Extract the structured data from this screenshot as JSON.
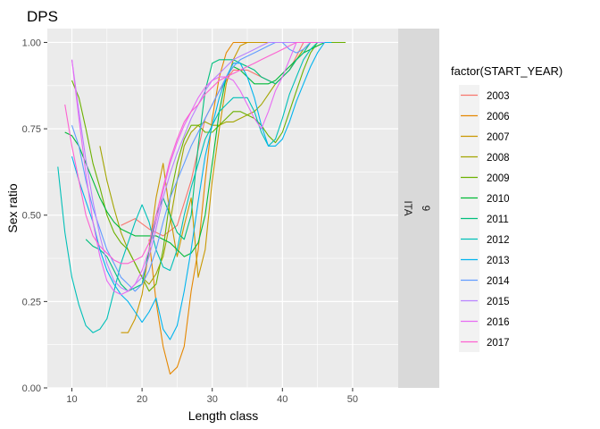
{
  "chart_data": {
    "type": "line",
    "title": "DPS",
    "xlabel": "Length class",
    "ylabel": "Sex ratio",
    "xlim": [
      6.5,
      56.5
    ],
    "ylim": [
      0,
      1.04
    ],
    "x_ticks": [
      10,
      20,
      30,
      40,
      50
    ],
    "y_ticks": [
      0,
      0.25,
      0.5,
      0.75,
      1
    ],
    "y_tick_labels": [
      "0.00",
      "0.25",
      "0.50",
      "0.75",
      "1.00"
    ],
    "grid": true,
    "facet_strip": [
      "9",
      "ITA"
    ],
    "legend_title": "factor(START_YEAR)",
    "legend_position": "right",
    "series": [
      {
        "name": "2003",
        "color": "#F8766D",
        "x": [
          17,
          19,
          21,
          23,
          25,
          27,
          29,
          31,
          33,
          35,
          37,
          39,
          41,
          43
        ],
        "y": [
          0.47,
          0.49,
          0.46,
          0.44,
          0.47,
          0.6,
          0.78,
          0.86,
          0.92,
          0.92,
          0.9,
          0.88,
          0.92,
          1.0
        ]
      },
      {
        "name": "2006",
        "color": "#E58700",
        "x": [
          21,
          22,
          23,
          24,
          25,
          26,
          27,
          28,
          29,
          30,
          31,
          32,
          33,
          35,
          37,
          39,
          41,
          43,
          45
        ],
        "y": [
          0.43,
          0.25,
          0.12,
          0.04,
          0.06,
          0.12,
          0.28,
          0.4,
          0.6,
          0.78,
          0.9,
          0.97,
          1.0,
          1.0,
          1.0,
          1.0,
          1.0,
          1.0,
          1.0
        ]
      },
      {
        "name": "2007",
        "color": "#C99800",
        "x": [
          17,
          18,
          19,
          20,
          21,
          22,
          23,
          24,
          25,
          26,
          27,
          28,
          29,
          30,
          31,
          32,
          33,
          34,
          35,
          36,
          37,
          39,
          41,
          43,
          45
        ],
        "y": [
          0.16,
          0.16,
          0.2,
          0.27,
          0.4,
          0.55,
          0.65,
          0.5,
          0.38,
          0.47,
          0.55,
          0.32,
          0.4,
          0.6,
          0.75,
          0.88,
          0.95,
          0.99,
          1.0,
          1.0,
          1.0,
          1.0,
          1.0,
          1.0,
          1.0
        ]
      },
      {
        "name": "2008",
        "color": "#A3A500",
        "x": [
          14,
          15,
          16,
          17,
          18,
          19,
          20,
          21,
          22,
          23,
          24,
          25,
          26,
          27,
          28,
          29,
          30,
          31,
          32,
          33,
          34,
          35,
          36,
          37,
          38,
          39,
          40,
          41,
          42,
          43,
          44,
          45,
          46
        ],
        "y": [
          0.7,
          0.6,
          0.52,
          0.45,
          0.4,
          0.36,
          0.32,
          0.3,
          0.33,
          0.38,
          0.48,
          0.6,
          0.7,
          0.74,
          0.76,
          0.77,
          0.76,
          0.76,
          0.77,
          0.77,
          0.78,
          0.79,
          0.8,
          0.82,
          0.85,
          0.88,
          0.9,
          0.92,
          0.95,
          0.98,
          1.0,
          1.0,
          1.0
        ]
      },
      {
        "name": "2009",
        "color": "#6BB100",
        "x": [
          10,
          11,
          12,
          13,
          14,
          15,
          16,
          17,
          18,
          19,
          20,
          21,
          22,
          23,
          24,
          25,
          26,
          27,
          28,
          29,
          30,
          31,
          32,
          33,
          34,
          35,
          36,
          37,
          38,
          39,
          40,
          41,
          42,
          43,
          44,
          45,
          46,
          47,
          48,
          49
        ],
        "y": [
          0.89,
          0.84,
          0.75,
          0.65,
          0.58,
          0.5,
          0.45,
          0.42,
          0.4,
          0.36,
          0.32,
          0.28,
          0.3,
          0.4,
          0.55,
          0.65,
          0.72,
          0.76,
          0.76,
          0.74,
          0.74,
          0.76,
          0.78,
          0.8,
          0.8,
          0.79,
          0.78,
          0.76,
          0.73,
          0.71,
          0.74,
          0.8,
          0.86,
          0.92,
          0.97,
          1.0,
          1.0,
          1.0,
          1.0,
          1.0
        ]
      },
      {
        "name": "2010",
        "color": "#00BA38",
        "x": [
          9,
          10,
          11,
          12,
          13,
          14,
          15,
          16,
          17,
          18,
          19,
          20,
          21,
          22,
          23,
          24,
          25,
          26,
          27,
          28,
          29,
          30,
          31,
          32,
          33,
          34,
          35,
          36,
          37,
          38,
          39,
          40,
          41,
          42,
          43,
          44,
          45,
          46,
          47
        ],
        "y": [
          0.74,
          0.73,
          0.7,
          0.65,
          0.6,
          0.55,
          0.51,
          0.48,
          0.46,
          0.45,
          0.44,
          0.44,
          0.44,
          0.44,
          0.43,
          0.42,
          0.4,
          0.38,
          0.39,
          0.42,
          0.5,
          0.65,
          0.8,
          0.9,
          0.93,
          0.92,
          0.9,
          0.88,
          0.88,
          0.88,
          0.89,
          0.91,
          0.93,
          0.95,
          0.97,
          0.98,
          0.99,
          1.0,
          1.0
        ]
      },
      {
        "name": "2011",
        "color": "#00BF7D",
        "x": [
          12,
          13,
          14,
          15,
          16,
          17,
          18,
          19,
          20,
          21,
          22,
          23,
          24,
          25,
          26,
          27,
          28,
          29,
          30,
          31,
          32,
          33,
          34,
          35,
          36,
          37,
          38,
          39,
          40,
          41,
          42,
          43,
          44,
          45
        ],
        "y": [
          0.43,
          0.41,
          0.4,
          0.38,
          0.34,
          0.3,
          0.28,
          0.29,
          0.3,
          0.4,
          0.5,
          0.55,
          0.5,
          0.45,
          0.43,
          0.5,
          0.7,
          0.86,
          0.94,
          0.95,
          0.95,
          0.95,
          0.94,
          0.93,
          0.92,
          0.9,
          0.89,
          0.88,
          0.9,
          0.92,
          0.95,
          0.97,
          1.0,
          1.0
        ]
      },
      {
        "name": "2012",
        "color": "#00C0B8",
        "x": [
          8,
          9,
          10,
          11,
          12,
          13,
          14,
          15,
          16,
          17,
          18,
          19,
          20,
          21,
          22,
          23,
          24,
          25,
          26,
          27,
          28,
          29,
          30,
          31,
          32,
          33,
          34,
          35,
          36,
          37,
          38,
          39,
          40,
          41,
          42,
          43,
          44,
          45,
          46
        ],
        "y": [
          0.64,
          0.45,
          0.32,
          0.24,
          0.18,
          0.16,
          0.17,
          0.2,
          0.28,
          0.36,
          0.42,
          0.48,
          0.53,
          0.48,
          0.4,
          0.35,
          0.34,
          0.4,
          0.5,
          0.58,
          0.65,
          0.72,
          0.76,
          0.8,
          0.82,
          0.84,
          0.84,
          0.84,
          0.8,
          0.74,
          0.7,
          0.72,
          0.78,
          0.85,
          0.9,
          0.95,
          0.98,
          1.0,
          1.0
        ]
      },
      {
        "name": "2013",
        "color": "#00B4EF",
        "x": [
          10,
          11,
          12,
          13,
          14,
          15,
          16,
          17,
          18,
          19,
          20,
          21,
          22,
          23,
          24,
          25,
          26,
          27,
          28,
          29,
          30,
          31,
          32,
          33,
          34,
          35,
          36,
          37,
          38,
          39,
          40,
          41,
          42,
          43,
          44,
          45,
          46,
          47
        ],
        "y": [
          0.67,
          0.6,
          0.54,
          0.48,
          0.4,
          0.34,
          0.3,
          0.27,
          0.25,
          0.22,
          0.19,
          0.22,
          0.26,
          0.17,
          0.14,
          0.18,
          0.28,
          0.4,
          0.54,
          0.67,
          0.76,
          0.84,
          0.9,
          0.94,
          0.94,
          0.9,
          0.84,
          0.76,
          0.7,
          0.7,
          0.72,
          0.77,
          0.83,
          0.88,
          0.93,
          0.97,
          1.0,
          1.0
        ]
      },
      {
        "name": "2014",
        "color": "#619CFF",
        "x": [
          10,
          11,
          12,
          13,
          14,
          15,
          16,
          17,
          18,
          19,
          20,
          21,
          22,
          23,
          24,
          25,
          26,
          27,
          28,
          29,
          30,
          31,
          32,
          33,
          34,
          35,
          36,
          37,
          38,
          39,
          40,
          41,
          42,
          43,
          44,
          45,
          46
        ],
        "y": [
          0.76,
          0.7,
          0.6,
          0.52,
          0.46,
          0.4,
          0.36,
          0.32,
          0.3,
          0.28,
          0.3,
          0.34,
          0.4,
          0.48,
          0.55,
          0.6,
          0.65,
          0.7,
          0.74,
          0.78,
          0.82,
          0.86,
          0.9,
          0.93,
          0.95,
          0.96,
          0.97,
          0.98,
          0.99,
          1.0,
          1.0,
          0.98,
          0.97,
          0.98,
          1.0,
          1.0,
          1.0
        ]
      },
      {
        "name": "2015",
        "color": "#B983FF",
        "x": [
          10,
          11,
          12,
          13,
          14,
          15,
          16,
          17,
          18,
          19,
          20,
          21,
          22,
          23,
          24,
          25,
          26,
          27,
          28,
          29,
          30,
          31,
          32,
          33,
          34,
          35,
          36,
          37,
          38,
          39,
          40,
          41,
          42,
          43,
          44,
          45,
          46
        ],
        "y": [
          0.95,
          0.8,
          0.66,
          0.54,
          0.44,
          0.36,
          0.31,
          0.29,
          0.28,
          0.3,
          0.32,
          0.38,
          0.46,
          0.55,
          0.62,
          0.68,
          0.73,
          0.78,
          0.82,
          0.86,
          0.89,
          0.91,
          0.93,
          0.95,
          0.96,
          0.97,
          0.98,
          0.99,
          1.0,
          1.0,
          1.0,
          1.0,
          1.0,
          1.0,
          1.0,
          1.0,
          1.0
        ]
      },
      {
        "name": "2016",
        "color": "#E76BF3",
        "x": [
          10,
          11,
          12,
          13,
          14,
          15,
          16,
          17,
          18,
          19,
          20,
          21,
          22,
          23,
          24,
          25,
          26,
          27,
          28,
          29,
          30,
          31,
          32,
          33,
          34,
          35,
          36,
          37,
          38,
          39,
          40,
          41,
          42,
          43,
          44,
          45
        ],
        "y": [
          0.95,
          0.78,
          0.62,
          0.48,
          0.38,
          0.31,
          0.28,
          0.27,
          0.28,
          0.3,
          0.34,
          0.4,
          0.48,
          0.57,
          0.65,
          0.71,
          0.76,
          0.8,
          0.84,
          0.87,
          0.89,
          0.9,
          0.9,
          0.89,
          0.86,
          0.82,
          0.78,
          0.75,
          0.8,
          0.86,
          0.9,
          0.95,
          1.0,
          1.0,
          1.0,
          1.0
        ]
      },
      {
        "name": "2017",
        "color": "#FD61D1",
        "x": [
          9,
          10,
          11,
          12,
          13,
          14,
          15,
          16,
          17,
          18,
          19,
          20,
          21,
          22,
          23,
          24,
          25,
          26,
          27,
          28,
          29,
          30,
          31,
          32,
          33,
          34,
          35,
          36,
          37,
          38,
          39,
          40,
          41,
          42,
          43,
          44,
          45
        ],
        "y": [
          0.82,
          0.7,
          0.6,
          0.5,
          0.44,
          0.41,
          0.39,
          0.37,
          0.36,
          0.36,
          0.37,
          0.38,
          0.42,
          0.5,
          0.58,
          0.66,
          0.72,
          0.77,
          0.8,
          0.82,
          0.85,
          0.87,
          0.89,
          0.9,
          0.91,
          0.92,
          0.93,
          0.94,
          0.95,
          0.96,
          0.97,
          0.98,
          0.99,
          1.0,
          1.0,
          1.0,
          1.0
        ]
      }
    ]
  }
}
